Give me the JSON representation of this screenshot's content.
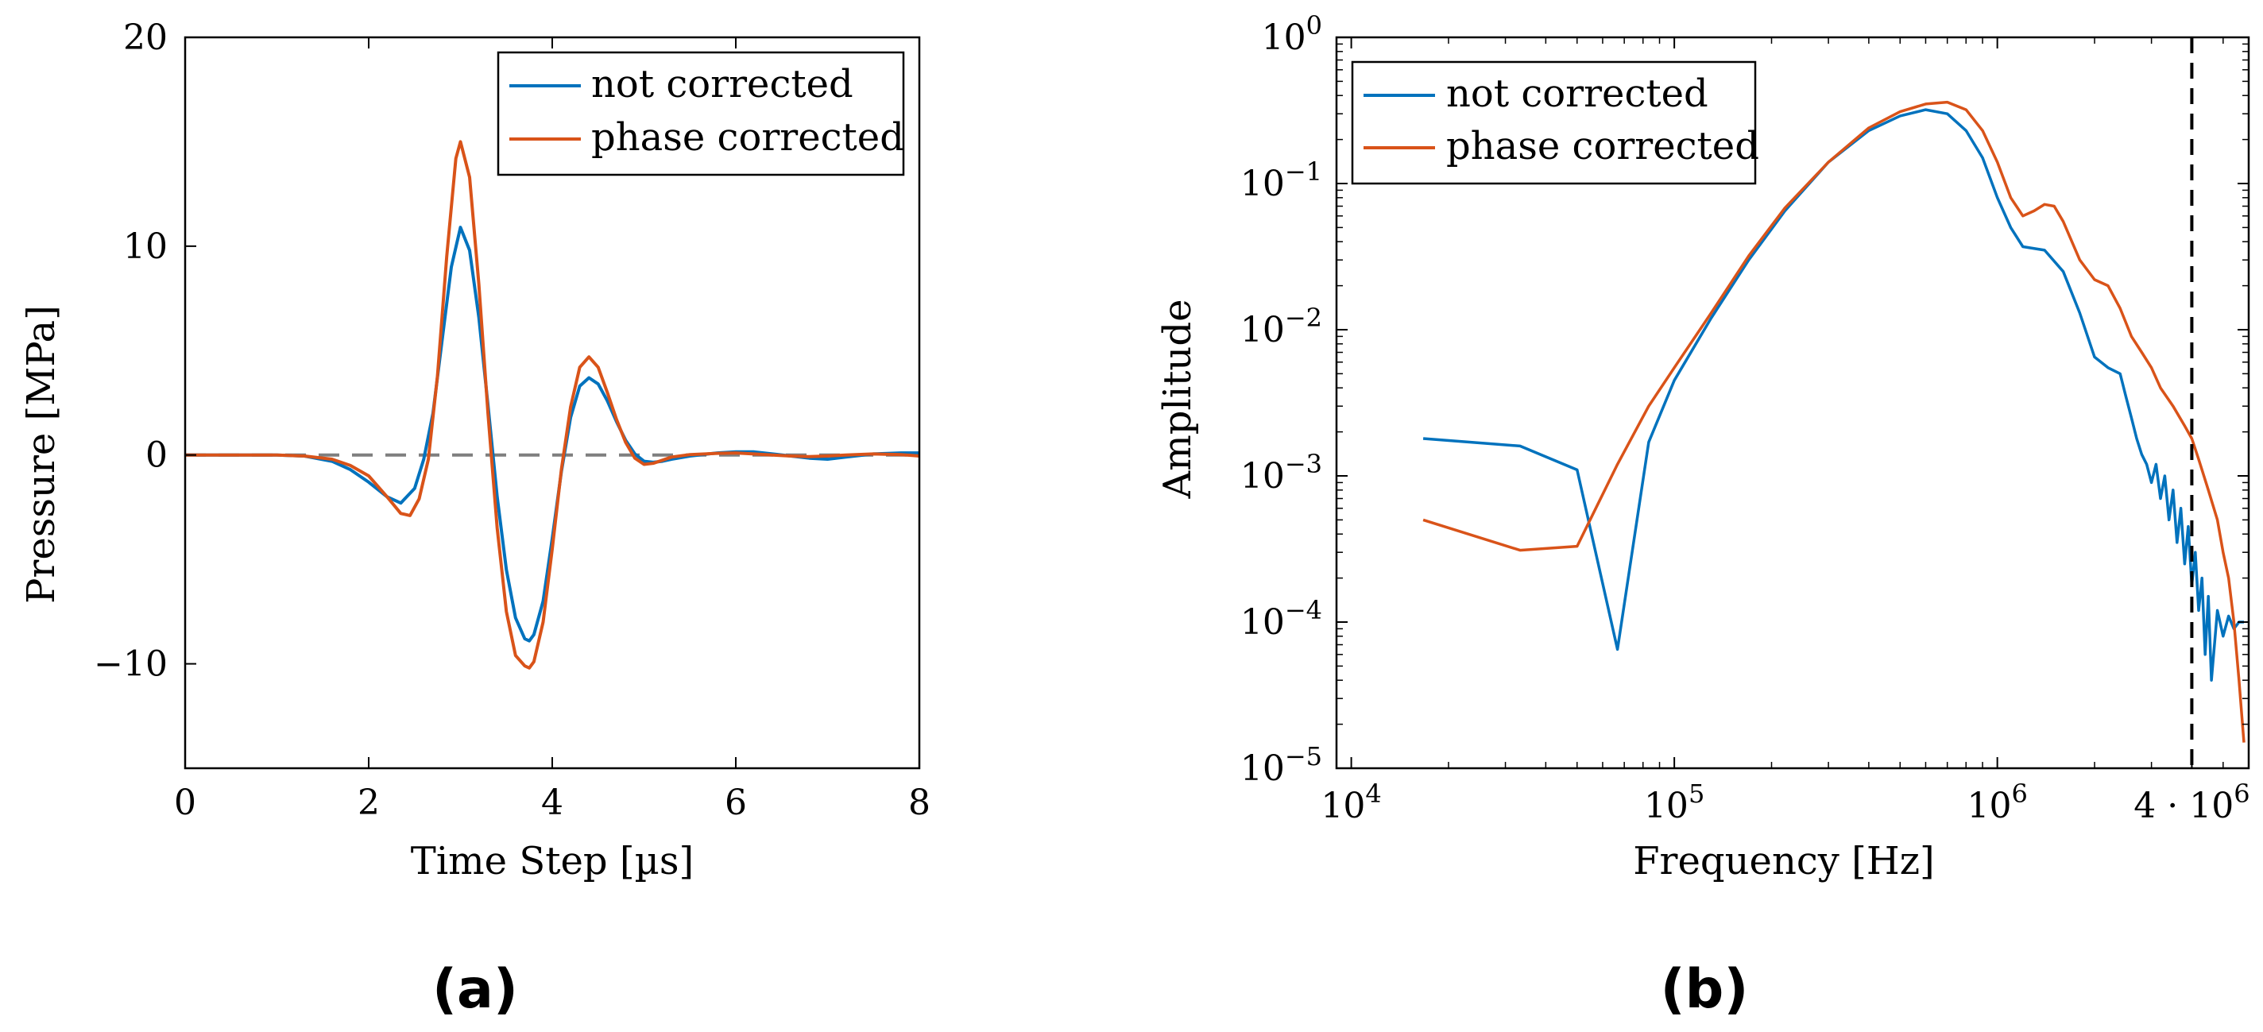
{
  "chart_data": [
    {
      "panel_label": "(a)",
      "type": "line",
      "title": "",
      "xlabel": "Time Step [µs]",
      "ylabel": "Pressure [MPa]",
      "xlim": [
        0,
        8
      ],
      "ylim": [
        -15,
        20
      ],
      "x_ticks": [
        0,
        2,
        4,
        6,
        8
      ],
      "x_tick_labels": [
        "0",
        "2",
        "4",
        "6",
        "8"
      ],
      "y_ticks": [
        -10,
        0,
        10,
        20
      ],
      "y_tick_labels": [
        "−10",
        "0",
        "10",
        "20"
      ],
      "grid": false,
      "legend_position": "top-right",
      "reference_line": {
        "y": 0,
        "style": "dashed",
        "color": "#7f7f7f"
      },
      "series": [
        {
          "name": "not corrected",
          "color": "#0072bd",
          "x": [
            0,
            0.5,
            1,
            1.3,
            1.6,
            1.8,
            2,
            2.2,
            2.35,
            2.5,
            2.6,
            2.7,
            2.8,
            2.9,
            3,
            3.1,
            3.2,
            3.3,
            3.4,
            3.5,
            3.6,
            3.7,
            3.75,
            3.8,
            3.9,
            4,
            4.1,
            4.2,
            4.3,
            4.4,
            4.5,
            4.6,
            4.7,
            4.8,
            4.9,
            5,
            5.1,
            5.2,
            5.3,
            5.5,
            5.8,
            6,
            6.2,
            6.4,
            6.6,
            6.8,
            7,
            7.2,
            7.5,
            7.8,
            8
          ],
          "y": [
            0,
            0,
            0,
            -0.05,
            -0.3,
            -0.7,
            -1.3,
            -2.0,
            -2.3,
            -1.6,
            -0.2,
            2.0,
            5.5,
            9.0,
            10.9,
            9.8,
            6.6,
            2.4,
            -2.0,
            -5.5,
            -7.8,
            -8.8,
            -8.9,
            -8.6,
            -7.0,
            -4.0,
            -0.8,
            1.8,
            3.3,
            3.7,
            3.4,
            2.6,
            1.6,
            0.7,
            0.05,
            -0.3,
            -0.35,
            -0.3,
            -0.2,
            -0.05,
            0.1,
            0.15,
            0.15,
            0.05,
            -0.05,
            -0.15,
            -0.2,
            -0.1,
            0.05,
            0.1,
            0.1
          ]
        },
        {
          "name": "phase corrected",
          "color": "#d95319",
          "x": [
            0,
            0.5,
            1,
            1.3,
            1.6,
            1.8,
            2,
            2.2,
            2.35,
            2.45,
            2.55,
            2.65,
            2.75,
            2.85,
            2.95,
            3.0,
            3.1,
            3.2,
            3.3,
            3.4,
            3.5,
            3.6,
            3.7,
            3.75,
            3.8,
            3.9,
            4,
            4.1,
            4.2,
            4.3,
            4.4,
            4.5,
            4.6,
            4.7,
            4.8,
            4.9,
            5,
            5.1,
            5.2,
            5.3,
            5.5,
            5.8,
            6,
            6.2,
            6.4,
            6.6,
            6.8,
            7,
            7.2,
            7.5,
            7.8,
            8
          ],
          "y": [
            0,
            0,
            0,
            -0.05,
            -0.2,
            -0.5,
            -1.0,
            -2.0,
            -2.8,
            -2.9,
            -2.1,
            -0.2,
            3.8,
            9.5,
            14.2,
            15.0,
            13.3,
            8.2,
            2.0,
            -3.5,
            -7.5,
            -9.6,
            -10.1,
            -10.2,
            -9.9,
            -8.0,
            -4.5,
            -0.7,
            2.3,
            4.2,
            4.7,
            4.2,
            3.0,
            1.7,
            0.6,
            -0.15,
            -0.45,
            -0.4,
            -0.25,
            -0.1,
            0.02,
            0.08,
            0.1,
            0.05,
            0,
            -0.05,
            -0.08,
            -0.05,
            0,
            0.05,
            0.02,
            -0.05
          ]
        }
      ]
    },
    {
      "panel_label": "(b)",
      "type": "line",
      "title": "",
      "xlabel": "Frequency [Hz]",
      "ylabel": "Amplitude",
      "x_scale": "log",
      "y_scale": "log",
      "xlim": [
        9000,
        6000000
      ],
      "ylim": [
        1e-05,
        1
      ],
      "x_ticks": [
        10000,
        100000,
        1000000,
        4000000
      ],
      "x_tick_labels": [
        "10",
        "10",
        "10",
        "4 · 10"
      ],
      "x_tick_exponents": [
        "4",
        "5",
        "6",
        "6"
      ],
      "y_ticks": [
        1e-05,
        0.0001,
        0.001,
        0.01,
        0.1,
        1
      ],
      "y_tick_labels": [
        "10",
        "10",
        "10",
        "10",
        "10",
        "10"
      ],
      "y_tick_exponents": [
        "−5",
        "−4",
        "−3",
        "−2",
        "−1",
        "0"
      ],
      "grid": false,
      "legend_position": "top-left",
      "reference_line": {
        "x": 4000000,
        "style": "dashed",
        "color": "#000000"
      },
      "series": [
        {
          "name": "not corrected",
          "color": "#0072bd",
          "x": [
            16700,
            33300,
            50000,
            66700,
            83300,
            100000,
            130000,
            170000,
            220000,
            300000,
            400000,
            500000,
            600000,
            700000,
            800000,
            900000,
            1000000,
            1100000,
            1200000,
            1400000,
            1600000,
            1800000,
            2000000,
            2200000,
            2400000,
            2500000,
            2600000,
            2700000,
            2800000,
            2900000,
            3000000,
            3100000,
            3200000,
            3300000,
            3400000,
            3500000,
            3600000,
            3700000,
            3800000,
            3900000,
            4000000,
            4100000,
            4200000,
            4300000,
            4400000,
            4500000,
            4600000,
            4800000,
            5000000,
            5200000,
            5400000,
            5600000,
            5800000
          ],
          "y": [
            0.0018,
            0.0016,
            0.0011,
            6.5e-05,
            0.0017,
            0.0045,
            0.012,
            0.03,
            0.065,
            0.14,
            0.23,
            0.29,
            0.32,
            0.3,
            0.23,
            0.15,
            0.08,
            0.05,
            0.037,
            0.035,
            0.025,
            0.013,
            0.0065,
            0.0055,
            0.005,
            0.0035,
            0.0025,
            0.0018,
            0.0014,
            0.0012,
            0.0009,
            0.0012,
            0.0007,
            0.001,
            0.0005,
            0.0008,
            0.00035,
            0.0006,
            0.00025,
            0.00045,
            0.00018,
            0.0003,
            0.00012,
            0.0002,
            6e-05,
            0.00015,
            4e-05,
            0.00012,
            8e-05,
            0.00011,
            9e-05,
            0.0001,
            0.0001
          ]
        },
        {
          "name": "phase corrected",
          "color": "#d95319",
          "x": [
            16700,
            33300,
            50000,
            66700,
            83300,
            100000,
            130000,
            170000,
            220000,
            300000,
            400000,
            500000,
            600000,
            700000,
            800000,
            900000,
            1000000,
            1100000,
            1200000,
            1300000,
            1400000,
            1500000,
            1600000,
            1800000,
            2000000,
            2200000,
            2400000,
            2600000,
            2800000,
            3000000,
            3200000,
            3500000,
            3800000,
            4000000,
            4200000,
            4500000,
            4800000,
            5000000,
            5200000,
            5400000,
            5600000,
            5800000
          ],
          "y": [
            0.0005,
            0.00031,
            0.00033,
            0.0012,
            0.003,
            0.0055,
            0.013,
            0.032,
            0.068,
            0.14,
            0.24,
            0.31,
            0.35,
            0.36,
            0.32,
            0.23,
            0.14,
            0.08,
            0.06,
            0.065,
            0.072,
            0.07,
            0.055,
            0.03,
            0.022,
            0.02,
            0.014,
            0.009,
            0.007,
            0.0055,
            0.004,
            0.003,
            0.0022,
            0.0018,
            0.0013,
            0.0008,
            0.0005,
            0.0003,
            0.0002,
            0.0001,
            4e-05,
            1.5e-05
          ]
        }
      ]
    }
  ]
}
